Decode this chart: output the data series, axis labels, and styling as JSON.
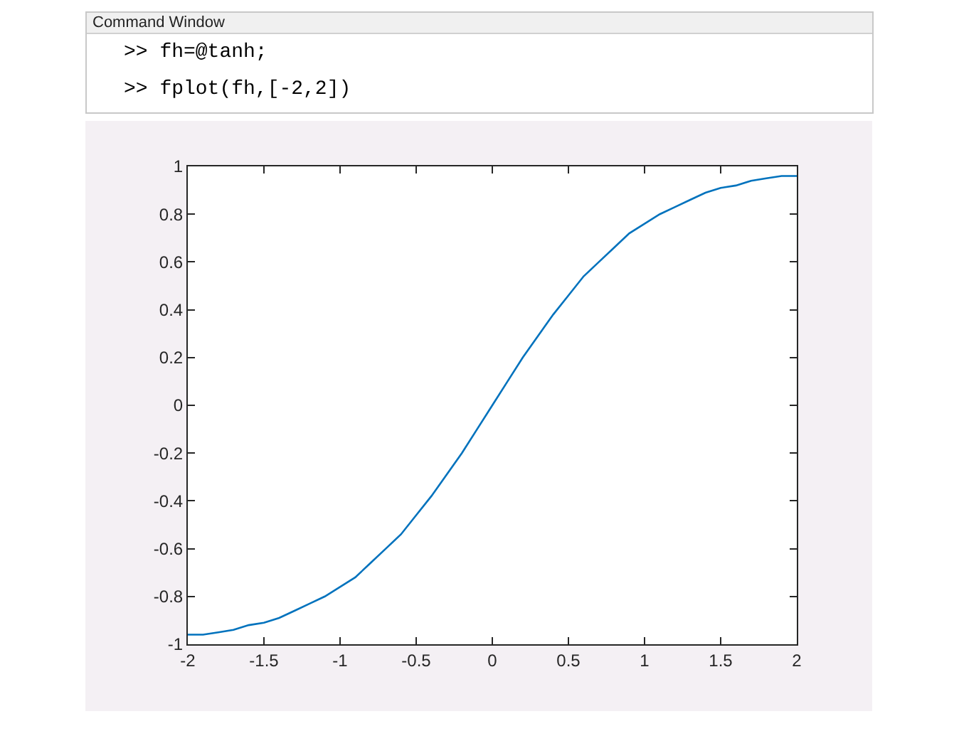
{
  "chart_data": {
    "type": "line",
    "annotations": [
      "Command Window",
      ">> fh=@tanh;",
      ">> fplot(fh,[-2,2])"
    ],
    "x": [
      -2,
      -1.9,
      -1.8,
      -1.7,
      -1.6,
      -1.5,
      -1.4,
      -1.3,
      -1.2,
      -1.1,
      -1,
      -0.9,
      -0.8,
      -0.7,
      -0.6,
      -0.5,
      -0.4,
      -0.3,
      -0.2,
      -0.1,
      0,
      0.1,
      0.2,
      0.3,
      0.4,
      0.5,
      0.6,
      0.7,
      0.8,
      0.9,
      1,
      1.1,
      1.2,
      1.3,
      1.4,
      1.5,
      1.6,
      1.7,
      1.8,
      1.9,
      2
    ],
    "series": [
      {
        "color": "#0072bd",
        "values": [
          -0.96,
          -0.96,
          -0.95,
          -0.94,
          -0.92,
          -0.91,
          -0.89,
          -0.86,
          -0.83,
          -0.8,
          -0.76,
          -0.72,
          -0.66,
          -0.6,
          -0.54,
          -0.46,
          -0.38,
          -0.29,
          -0.2,
          -0.1,
          0,
          0.1,
          0.2,
          0.29,
          0.38,
          0.46,
          0.54,
          0.6,
          0.66,
          0.72,
          0.76,
          0.8,
          0.83,
          0.86,
          0.89,
          0.91,
          0.92,
          0.94,
          0.95,
          0.96,
          0.96
        ]
      }
    ],
    "xlim": [
      -2,
      2
    ],
    "xticks": [
      -2,
      -1.5,
      -1,
      -0.5,
      0,
      0.5,
      1,
      1.5,
      2
    ],
    "ylim": [
      -1,
      1
    ],
    "yticks": [
      -1,
      -0.8,
      -0.6,
      -0.4,
      -0.2,
      0,
      0.2,
      0.4,
      0.6,
      0.8,
      1
    ],
    "grid": false
  }
}
